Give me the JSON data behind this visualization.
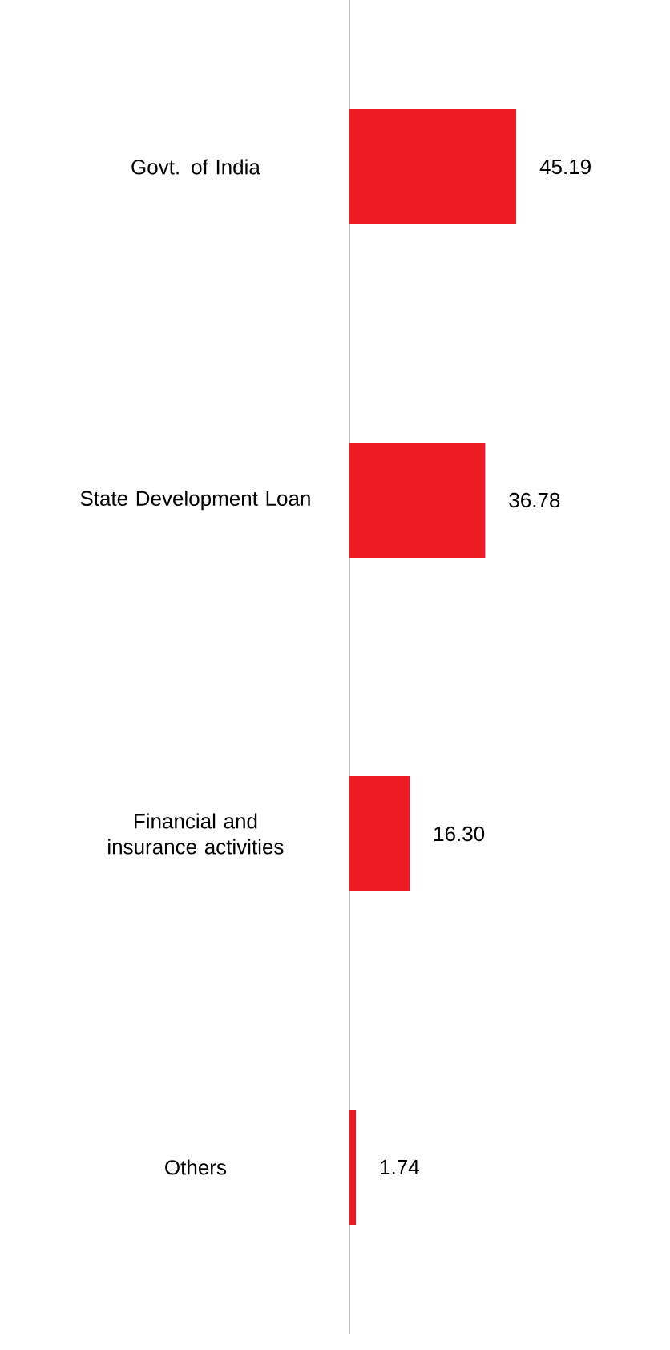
{
  "chart_data": {
    "type": "bar",
    "orientation": "horizontal",
    "categories": [
      "Govt. of India",
      "State Development Loan",
      "Financial and insurance activities",
      "Others"
    ],
    "values": [
      45.19,
      36.78,
      16.3,
      1.74
    ],
    "value_labels": [
      "45.19",
      "36.78",
      "16.30",
      "1.74"
    ],
    "color": "#ed1c24"
  }
}
